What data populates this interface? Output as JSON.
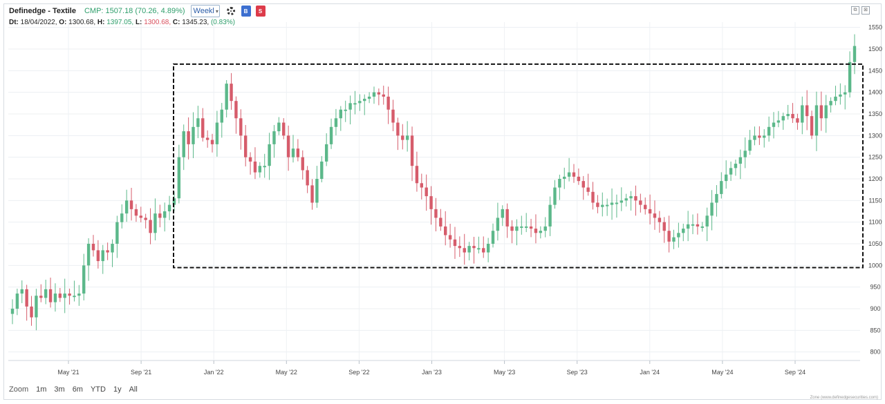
{
  "header": {
    "symbol": "Definedge - Textile",
    "cmp": "CMP: 1507.18 (70.26, 4.89%)",
    "timeframe": "Weekl",
    "buy_label": "B",
    "sell_label": "S"
  },
  "ohlc": {
    "dt_label": "Dt:",
    "dt": "18/04/2022,",
    "o_label": "O:",
    "o": "1300.68,",
    "h_label": "H:",
    "h": "1397.05,",
    "l_label": "L:",
    "l": "1300.68,",
    "c_label": "C:",
    "c": "1345.23,",
    "change": "(0.83%)"
  },
  "zoom": {
    "label": "Zoom",
    "options": [
      "1m",
      "3m",
      "6m",
      "YTD",
      "1y",
      "All"
    ]
  },
  "credit": "Zone (www.definedgesecurities.com)",
  "colors": {
    "up": "#5cb88a",
    "down": "#d65c6b",
    "box": "#111111"
  },
  "chart_data": {
    "type": "candlestick",
    "y_ticks": [
      800,
      850,
      900,
      950,
      1000,
      1050,
      1100,
      1150,
      1200,
      1250,
      1300,
      1350,
      1400,
      1450,
      1500,
      1550
    ],
    "ylim": [
      780,
      1560
    ],
    "x_ticks": [
      "May '21",
      "Sep '21",
      "Jan '22",
      "May '22",
      "Sep '22",
      "Jan '23",
      "May '23",
      "Sep '23",
      "Jan '24",
      "May '24",
      "Sep '24"
    ],
    "box": {
      "price_top": 1465,
      "price_bottom": 995
    },
    "closes": [
      900,
      935,
      945,
      905,
      880,
      930,
      925,
      945,
      915,
      935,
      925,
      935,
      930,
      930,
      935,
      1000,
      1050,
      1035,
      1010,
      1035,
      1030,
      1050,
      1100,
      1120,
      1150,
      1130,
      1115,
      1110,
      1105,
      1075,
      1120,
      1110,
      1125,
      1140,
      1155,
      1250,
      1310,
      1280,
      1320,
      1340,
      1295,
      1290,
      1280,
      1330,
      1360,
      1420,
      1380,
      1340,
      1300,
      1250,
      1240,
      1215,
      1230,
      1230,
      1280,
      1310,
      1330,
      1300,
      1250,
      1270,
      1250,
      1220,
      1185,
      1145,
      1200,
      1240,
      1280,
      1320,
      1340,
      1360,
      1360,
      1375,
      1375,
      1380,
      1385,
      1390,
      1400,
      1395,
      1390,
      1360,
      1330,
      1300,
      1290,
      1300,
      1230,
      1190,
      1180,
      1160,
      1130,
      1110,
      1090,
      1070,
      1060,
      1045,
      1040,
      1030,
      1045,
      1040,
      1040,
      1030,
      1050,
      1080,
      1110,
      1130,
      1090,
      1080,
      1090,
      1090,
      1090,
      1085,
      1075,
      1080,
      1090,
      1140,
      1180,
      1200,
      1205,
      1215,
      1205,
      1195,
      1180,
      1170,
      1145,
      1135,
      1140,
      1140,
      1145,
      1145,
      1150,
      1155,
      1160,
      1150,
      1140,
      1130,
      1120,
      1110,
      1100,
      1080,
      1055,
      1065,
      1075,
      1085,
      1095,
      1095,
      1090,
      1090,
      1115,
      1145,
      1165,
      1195,
      1210,
      1225,
      1235,
      1250,
      1265,
      1290,
      1300,
      1295,
      1300,
      1320,
      1330,
      1335,
      1345,
      1350,
      1340,
      1330,
      1370,
      1345,
      1300,
      1370,
      1340,
      1370,
      1380,
      1390,
      1395,
      1400,
      1470,
      1507
    ]
  }
}
